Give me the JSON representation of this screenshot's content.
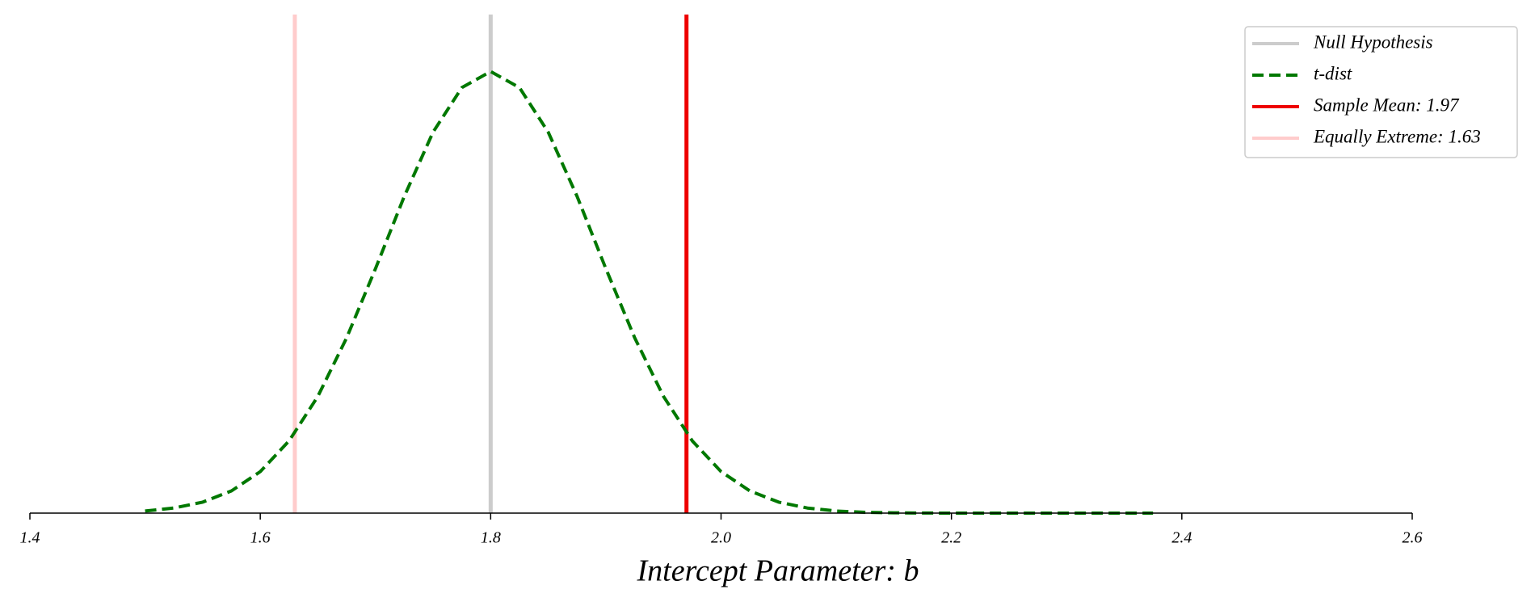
{
  "chart_data": {
    "type": "line",
    "xlabel": "Intercept Parameter: b",
    "xlim": [
      1.4,
      2.6
    ],
    "xticks": [
      1.4,
      1.6,
      1.8,
      {
        "value": 2,
        "label": "2.0"
      },
      2.2,
      2.4,
      2.6
    ],
    "ylim": [
      0,
      4.9
    ],
    "legend": "upper right",
    "series": [
      {
        "name": "t-dist",
        "color": "#007800",
        "dashed": true,
        "x": [
          1.5,
          1.525,
          1.55,
          1.575,
          1.6,
          1.625,
          1.65,
          1.675,
          1.7,
          1.725,
          1.75,
          1.775,
          1.8,
          1.825,
          1.85,
          1.875,
          1.9,
          1.925,
          1.95,
          1.975,
          2.0,
          2.025,
          2.05,
          2.075,
          2.1,
          2.125,
          2.15,
          2.175,
          2.2,
          2.225,
          2.25,
          2.275,
          2.3,
          2.325,
          2.35,
          2.375
        ],
        "values": [
          0.021,
          0.05,
          0.108,
          0.218,
          0.408,
          0.71,
          1.148,
          1.723,
          2.403,
          3.113,
          3.744,
          4.182,
          4.34,
          4.182,
          3.744,
          3.113,
          2.403,
          1.723,
          1.148,
          0.71,
          0.408,
          0.218,
          0.108,
          0.05,
          0.021,
          0.008,
          0.003,
          0.001,
          0,
          0,
          0,
          0,
          0,
          0,
          0,
          0
        ]
      }
    ],
    "vlines": [
      {
        "name": "Null Hypothesis",
        "x": 1.8,
        "color": "#cccccc"
      },
      {
        "name": "Sample Mean: 1.97",
        "x": 1.97,
        "color": "#ee0000"
      },
      {
        "name": "Equally Extreme: 1.63",
        "x": 1.63,
        "color": "#ffcccc"
      }
    ]
  }
}
